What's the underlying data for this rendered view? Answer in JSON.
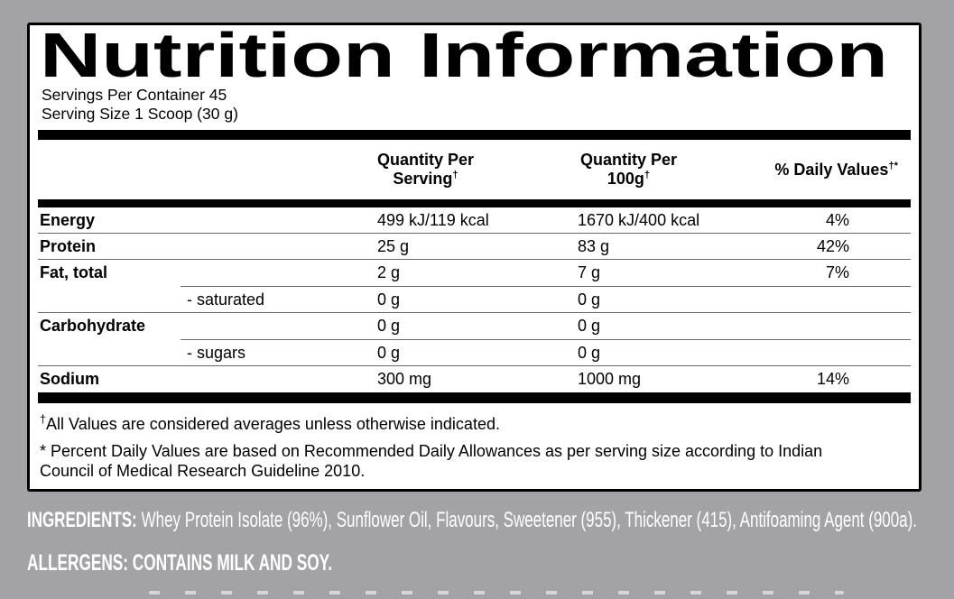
{
  "panel": {
    "title": "Nutrition Information",
    "servings_per_container": "Servings Per Container 45",
    "serving_size": "Serving Size 1 Scoop (30 g)",
    "columns": {
      "serving": {
        "line1": "Quantity Per",
        "line2": "Serving",
        "sup": "†"
      },
      "per_100g": {
        "line1": "Quantity Per",
        "line2": "100g",
        "sup": "†"
      },
      "daily_values": {
        "text": "% Daily Values",
        "sup": "†*"
      }
    },
    "rows": [
      {
        "name": "Energy",
        "sub": "",
        "per_serving": "499 kJ/119 kcal",
        "per_100g": "1670 kJ/400 kcal",
        "daily_value": "4%"
      },
      {
        "name": "Protein",
        "sub": "",
        "per_serving": "25 g",
        "per_100g": "83 g",
        "daily_value": "42%"
      },
      {
        "name": "Fat, total",
        "sub": "",
        "per_serving": "2 g",
        "per_100g": "7 g",
        "daily_value": "7%"
      },
      {
        "name": "",
        "sub": "- saturated",
        "per_serving": "0 g",
        "per_100g": "0 g",
        "daily_value": ""
      },
      {
        "name": "Carbohydrate",
        "sub": "",
        "per_serving": "0 g",
        "per_100g": "0 g",
        "daily_value": ""
      },
      {
        "name": "",
        "sub": "- sugars",
        "per_serving": "0 g",
        "per_100g": "0 g",
        "daily_value": ""
      },
      {
        "name": "Sodium",
        "sub": "",
        "per_serving": "300 mg",
        "per_100g": "1000 mg",
        "daily_value": "14%"
      }
    ],
    "footnotes": [
      {
        "prefix": "†",
        "text": "All Values are considered averages unless otherwise indicated."
      },
      {
        "prefix": "*",
        "text": " Percent Daily Values are based on Recommended Daily Allowances as per serving size according to Indian Council of Medical Research Guideline 2010."
      }
    ]
  },
  "ingredients": {
    "label": "INGREDIENTS:",
    "text": "Whey Protein Isolate (96%), Sunflower Oil, Flavours, Sweetener (955), Thickener (415), Antifoaming Agent (900a)."
  },
  "allergens": {
    "text": "ALLERGENS: CONTAINS MILK AND SOY."
  },
  "colors": {
    "background": "#a3a2a6",
    "panel_bg": "#ffffff",
    "ink": "#000000",
    "rule": "#6a6a6a",
    "overlay_text": "#ffffff"
  }
}
